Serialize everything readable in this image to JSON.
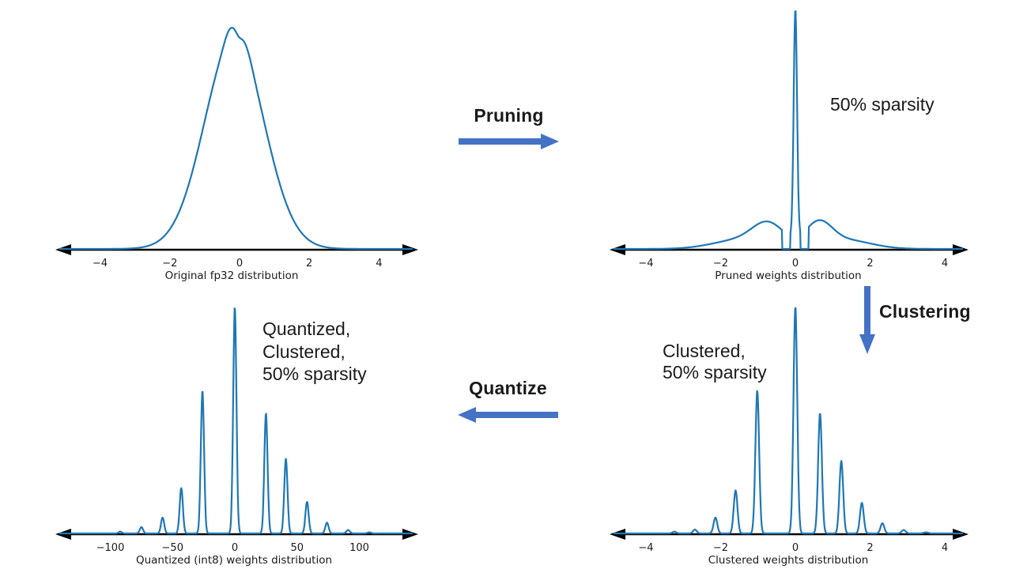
{
  "colors": {
    "curve": "#1f77b4",
    "flow_arrow": "#4472c4",
    "axis": "#000000",
    "chart_text": "#1a1a1a",
    "annotation_text": "#1a1a1a",
    "background": "#ffffff"
  },
  "flow": {
    "pruning_label": "Pruning",
    "clustering_label": "Clustering",
    "quantize_label": "Quantize"
  },
  "annotations": {
    "pruned": "50% sparsity",
    "clustered": "Clustered,\n50% sparsity",
    "quantized": "Quantized,\nClustered,\n50% sparsity"
  },
  "chart_data": [
    {
      "id": "original_fp32",
      "type": "line",
      "title": "",
      "xlabel": "Original fp32 distribution",
      "ylabel": "",
      "x_tick_values": [
        -4,
        -2,
        0,
        2,
        4
      ],
      "x_tick_labels": [
        "−4",
        "−2",
        "0",
        "2",
        "4"
      ],
      "x_range": [
        -5,
        5
      ],
      "y_axis_shown": false,
      "curve_shape": "bell curve (gaussian density of fp32 weights, slight double bump at peak)",
      "components_format": "[center, sigma, relative_height]",
      "components": [
        [
          -0.15,
          0.85,
          0.93
        ],
        [
          -0.27,
          0.16,
          0.05
        ],
        [
          0.2,
          0.16,
          0.035
        ],
        [
          -0.02,
          0.07,
          -0.013
        ]
      ],
      "mask_zones": []
    },
    {
      "id": "pruned",
      "type": "line",
      "title": "",
      "xlabel": "Pruned weights distribution",
      "ylabel": "",
      "x_tick_values": [
        -4,
        -2,
        0,
        2,
        4
      ],
      "x_tick_labels": [
        "−4",
        "−2",
        "0",
        "2",
        "4"
      ],
      "x_range": [
        -5,
        5
      ],
      "y_axis_shown": false,
      "curve_shape": "tall narrow spike at 0 plus side lobes, density gap around pruning threshold",
      "components_format": "[center, sigma, relative_height]",
      "components": [
        [
          0,
          0.045,
          1.0
        ],
        [
          -0.72,
          0.42,
          0.095
        ],
        [
          -1.45,
          0.75,
          0.04
        ],
        [
          0.62,
          0.35,
          0.1
        ],
        [
          1.3,
          0.7,
          0.04
        ]
      ],
      "mask_zones": [
        [
          -0.36,
          -0.13
        ],
        [
          0.13,
          0.36
        ]
      ]
    },
    {
      "id": "quantized_int8",
      "type": "line",
      "title": "",
      "xlabel": "Quantized (int8) weights distribution",
      "ylabel": "",
      "x_tick_values": [
        -100,
        -50,
        0,
        50,
        100
      ],
      "x_tick_labels": [
        "−100",
        "−50",
        "0",
        "50",
        "100"
      ],
      "x_range": [
        -140,
        140
      ],
      "y_axis_shown": false,
      "curve_shape": "discrete cluster spikes at int8 centroid values",
      "components_format": "[center, sigma, relative_height]",
      "components": [
        [
          -92,
          1.3,
          0.008
        ],
        [
          -75,
          1.3,
          0.028
        ],
        [
          -58,
          1.3,
          0.07
        ],
        [
          -43,
          1.3,
          0.2
        ],
        [
          -26,
          1.3,
          0.63
        ],
        [
          0,
          1.3,
          1.0
        ],
        [
          25,
          1.3,
          0.53
        ],
        [
          41,
          1.3,
          0.33
        ],
        [
          58,
          1.3,
          0.14
        ],
        [
          74,
          1.3,
          0.048
        ],
        [
          91,
          1.4,
          0.015
        ],
        [
          108,
          1.4,
          0.005
        ]
      ],
      "mask_zones": []
    },
    {
      "id": "clustered",
      "type": "line",
      "title": "",
      "xlabel": "Clustered weights distribution",
      "ylabel": "",
      "x_tick_values": [
        -4,
        -2,
        0,
        2,
        4
      ],
      "x_tick_labels": [
        "−4",
        "−2",
        "0",
        "2",
        "4"
      ],
      "x_range": [
        -5,
        5
      ],
      "y_axis_shown": false,
      "curve_shape": "discrete cluster spikes at centroid values, tallest at 0",
      "components_format": "[center, sigma, relative_height]",
      "components": [
        [
          -3.24,
          0.05,
          0.008
        ],
        [
          -2.69,
          0.05,
          0.017
        ],
        [
          -2.14,
          0.05,
          0.07
        ],
        [
          -1.6,
          0.05,
          0.19
        ],
        [
          -1.02,
          0.05,
          0.63
        ],
        [
          0,
          0.05,
          1.0
        ],
        [
          0.66,
          0.05,
          0.53
        ],
        [
          1.23,
          0.05,
          0.32
        ],
        [
          1.78,
          0.05,
          0.135
        ],
        [
          2.33,
          0.05,
          0.045
        ],
        [
          2.9,
          0.055,
          0.015
        ],
        [
          3.5,
          0.06,
          0.005
        ]
      ],
      "mask_zones": []
    }
  ]
}
